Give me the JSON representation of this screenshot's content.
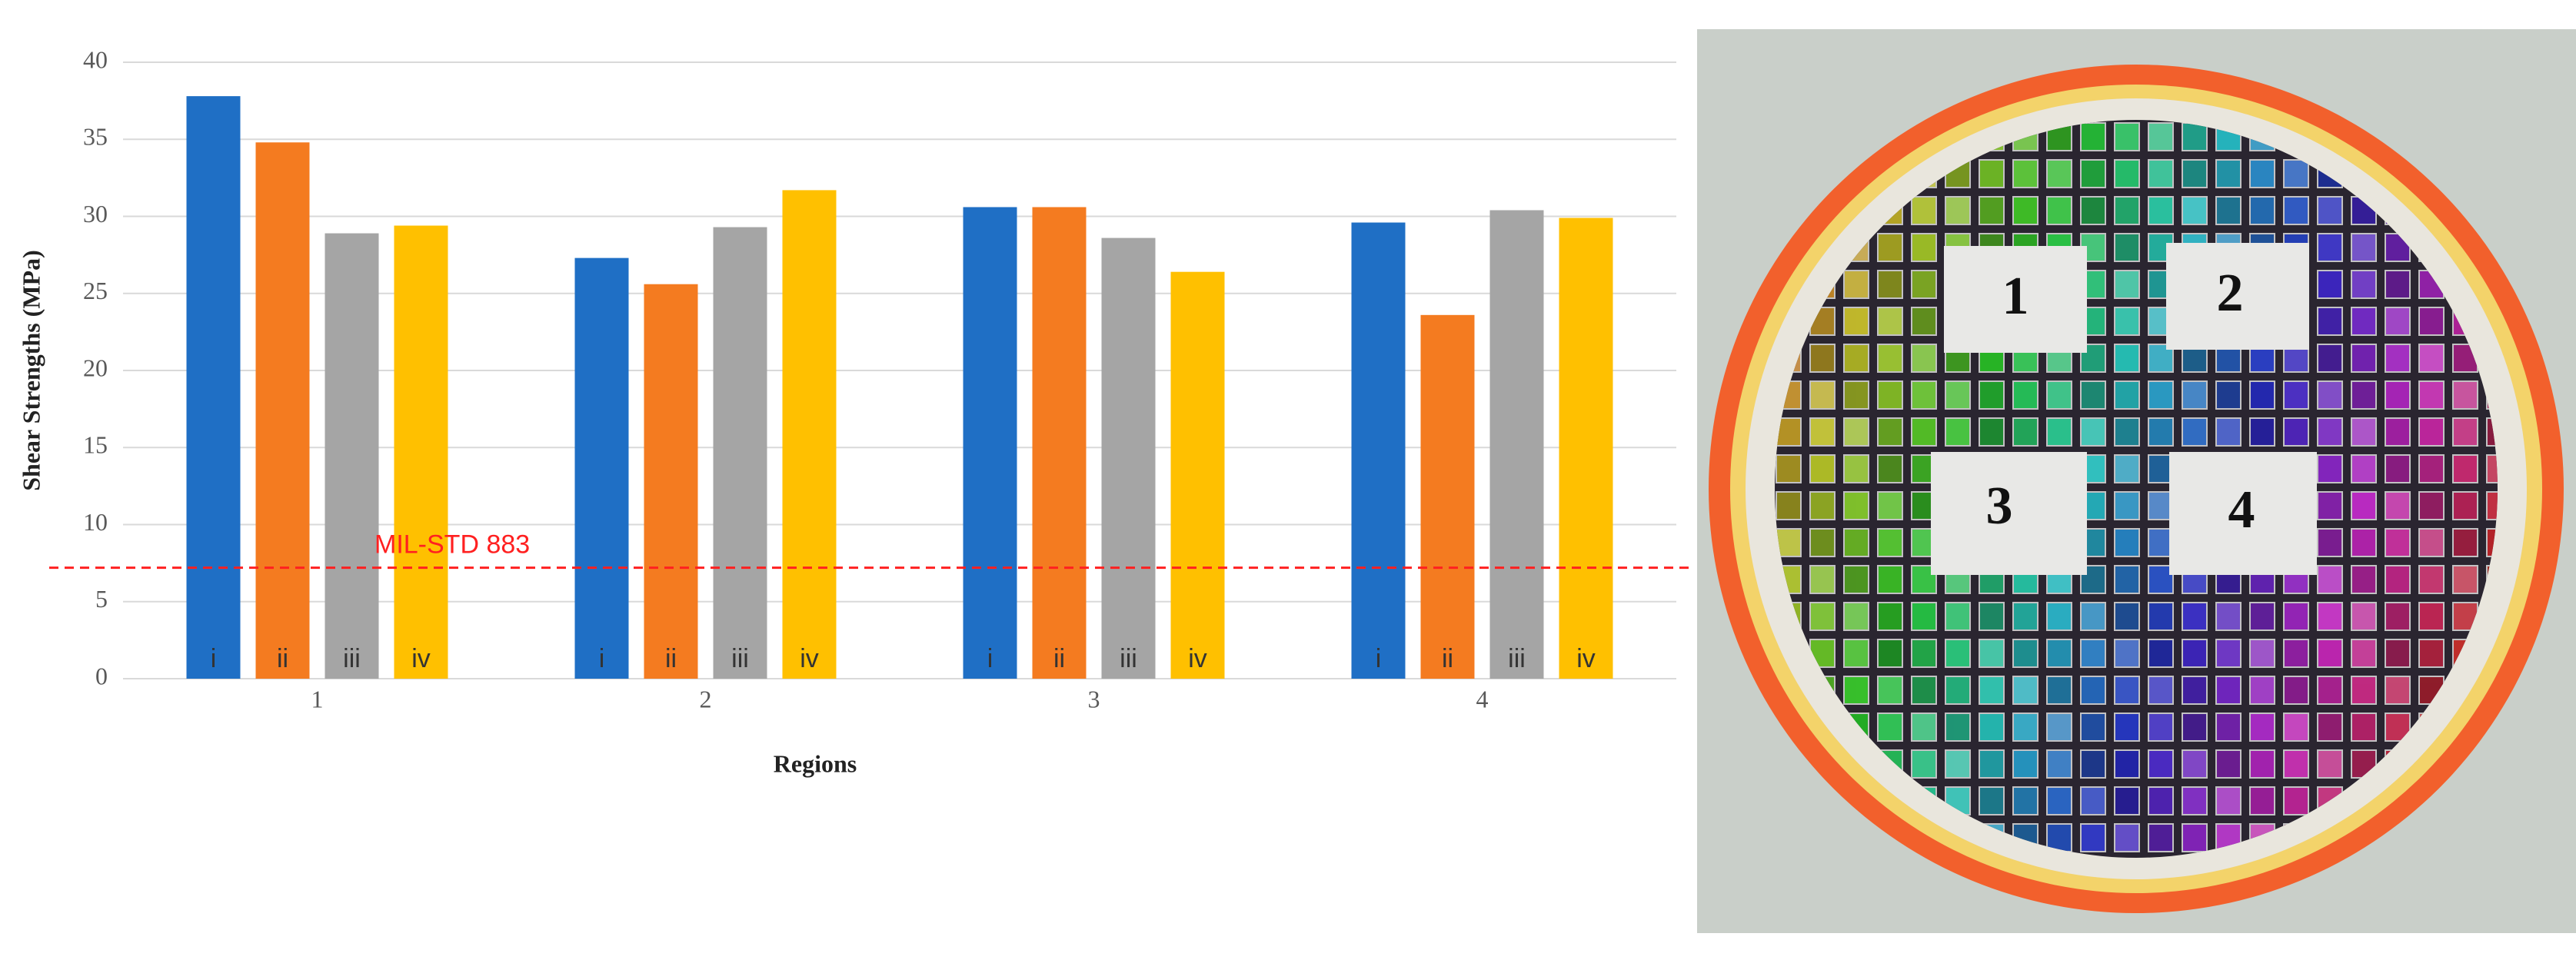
{
  "chart_data": {
    "type": "bar",
    "x_label": "Regions",
    "y_label": "Shear Strengths (MPa)",
    "categories": [
      "1",
      "2",
      "3",
      "4"
    ],
    "series": [
      {
        "name": "i",
        "color": "#1f6fc5",
        "values": [
          37.8,
          27.3,
          30.6,
          29.6
        ]
      },
      {
        "name": "ii",
        "color": "#f47b20",
        "values": [
          34.8,
          25.6,
          30.6,
          23.6
        ]
      },
      {
        "name": "iii",
        "color": "#a5a5a5",
        "values": [
          28.9,
          29.3,
          28.6,
          30.4
        ]
      },
      {
        "name": "iv",
        "color": "#ffc000",
        "values": [
          29.4,
          31.7,
          26.4,
          29.9
        ]
      }
    ],
    "reference_line": {
      "value": 7.2,
      "label": "MIL-STD 883",
      "color": "#ff2020"
    },
    "ylim": [
      0,
      40
    ],
    "yticks": [
      0,
      5,
      10,
      15,
      20,
      25,
      30,
      35,
      40
    ],
    "grid": true
  },
  "photo": {
    "region_labels": [
      "1",
      "2",
      "3",
      "4"
    ]
  }
}
